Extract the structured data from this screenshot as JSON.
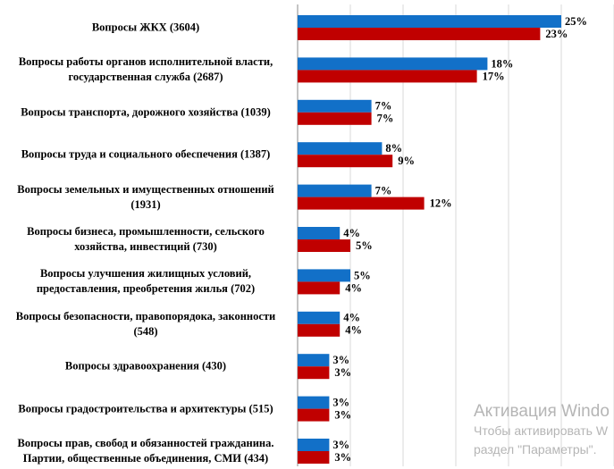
{
  "chart_data": {
    "type": "hbar",
    "categories": [
      "Вопросы ЖКХ  (3604)",
      "Вопросы работы органов исполнительной  власти,\nгосударственная служба (2687)",
      "Вопросы транспорта, дорожного хозяйства (1039)",
      "Вопросы труда и социального обеспечения (1387)",
      "Вопросы земельных и имущественных  отношений\n(1931)",
      "Вопросы бизнеса, промышленности, сельского\nхозяйства, инвестиций (730)",
      "Вопросы улучшения жилищных условий,\nпредоставления, преобретения жилья (702)",
      "Вопросы безопасности, правопорядока, законности\n(548)",
      "Вопросы здравоохранения (430)",
      "Вопросы градостроительства и архитектуры (515)",
      "Вопросы прав, свобод и обязанностей гражданина.\nПартии, общественные объединения, СМИ (434)"
    ],
    "series": [
      {
        "color": "#1270c8",
        "values": [
          25,
          18,
          7,
          8,
          7,
          4,
          5,
          4,
          3,
          3,
          3
        ],
        "value_labels": [
          "25%",
          "18%",
          "7%",
          "8%",
          "7%",
          "4%",
          "5%",
          "4%",
          "3%",
          "3%",
          "3%"
        ]
      },
      {
        "color": "#c00000",
        "values": [
          23,
          17,
          7,
          9,
          12,
          5,
          4,
          4,
          3,
          3,
          3
        ],
        "value_labels": [
          "23%",
          "17%",
          "7%",
          "9%",
          "12%",
          "5%",
          "4%",
          "4%",
          "3%",
          "3%",
          "3%"
        ]
      }
    ],
    "xlim": [
      0,
      30
    ],
    "xticks": [
      0,
      5,
      10,
      15,
      20,
      25,
      30
    ],
    "grid": true
  },
  "watermark": {
    "title": "Активация Windo",
    "line1": "Чтобы активировать W",
    "line2": "раздел \"Параметры\"."
  }
}
